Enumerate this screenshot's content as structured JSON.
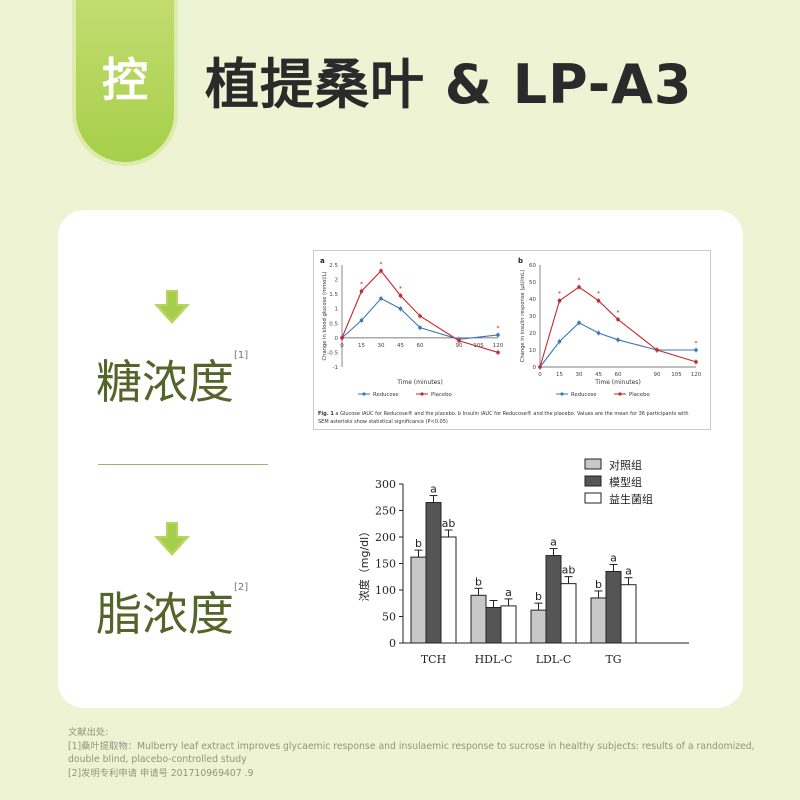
{
  "header": {
    "badge": "控",
    "title": "植提桑叶 & LP-A3"
  },
  "sections": [
    {
      "label": "糖浓度",
      "ref": "[1]"
    },
    {
      "label": "脂浓度",
      "ref": "[2]"
    }
  ],
  "references": {
    "heading": "文献出处:",
    "items": [
      "[1]桑叶提取物：Mulberry leaf extract improves glycaemic response and insulaemic response to sucrose in healthy subjects: results of a randomized, double blind, placebo-controlled study",
      "[2]发明专利申请 申请号 201710969407 .9"
    ]
  },
  "colors": {
    "reducose": "#3a78be",
    "placebo": "#c9282e",
    "accent": "#a7cf4a",
    "label": "#55652a"
  },
  "chart_data": [
    {
      "type": "line",
      "panel": "a",
      "ylabel": "Change in blood glucose (mmol/L)",
      "xlabel": "Time (minutes)",
      "x": [
        0,
        15,
        30,
        45,
        60,
        90,
        120
      ],
      "xticks": [
        "0",
        "15",
        "30",
        "45",
        "60",
        "90",
        "105",
        "120"
      ],
      "yticks": [
        2.5,
        2,
        1.5,
        1,
        0.5,
        0,
        -0.5,
        -1
      ],
      "ylim": [
        -1,
        2.5
      ],
      "series": [
        {
          "name": "Reducose",
          "values": [
            0,
            0.6,
            1.35,
            1.0,
            0.35,
            -0.05,
            0.1
          ]
        },
        {
          "name": "Placebo",
          "values": [
            0,
            1.6,
            2.3,
            1.45,
            0.75,
            -0.1,
            -0.5
          ]
        }
      ],
      "stars": [
        15,
        30,
        45,
        120
      ]
    },
    {
      "type": "line",
      "panel": "b",
      "ylabel": "Change in insulin response (µU/mL)",
      "xlabel": "Time (minutes)",
      "x": [
        0,
        15,
        30,
        45,
        60,
        90,
        120
      ],
      "xticks": [
        "0",
        "15",
        "30",
        "45",
        "60",
        "90",
        "105",
        "120"
      ],
      "yticks": [
        60,
        50,
        40,
        30,
        20,
        10,
        0
      ],
      "ylim": [
        0,
        60
      ],
      "series": [
        {
          "name": "Reducose",
          "values": [
            0,
            15,
            26,
            20,
            16,
            10,
            10
          ]
        },
        {
          "name": "Placebo",
          "values": [
            0,
            39,
            47,
            39,
            28,
            10,
            3
          ]
        }
      ],
      "stars": [
        15,
        30,
        45,
        60,
        120
      ]
    },
    {
      "type": "bar",
      "ylabel": "浓度（mg/dl）",
      "categories": [
        "TCH",
        "HDL-C",
        "LDL-C",
        "TG"
      ],
      "ylim": [
        0,
        300
      ],
      "yticks": [
        0,
        50,
        100,
        150,
        200,
        250,
        300
      ],
      "series": [
        {
          "name": "对照组",
          "values": [
            162,
            90,
            62,
            85
          ],
          "letters": [
            "b",
            "b",
            "b",
            "b"
          ]
        },
        {
          "name": "模型组",
          "values": [
            265,
            67,
            165,
            135
          ],
          "letters": [
            "a",
            "",
            "a",
            "a"
          ]
        },
        {
          "name": "益生菌组",
          "values": [
            200,
            70,
            112,
            110
          ],
          "letters": [
            "ab",
            "a",
            "ab",
            "a"
          ]
        }
      ]
    }
  ],
  "figure_caption": {
    "bold": "Fig. 1",
    "text": " a Glucose iAUC for Reducose® and the placebo. b Insulin iAUC for Reducose® and the placebo. Values are the mean for 36 participants with SEM asterisks show statistical significance (P<0.05)"
  }
}
